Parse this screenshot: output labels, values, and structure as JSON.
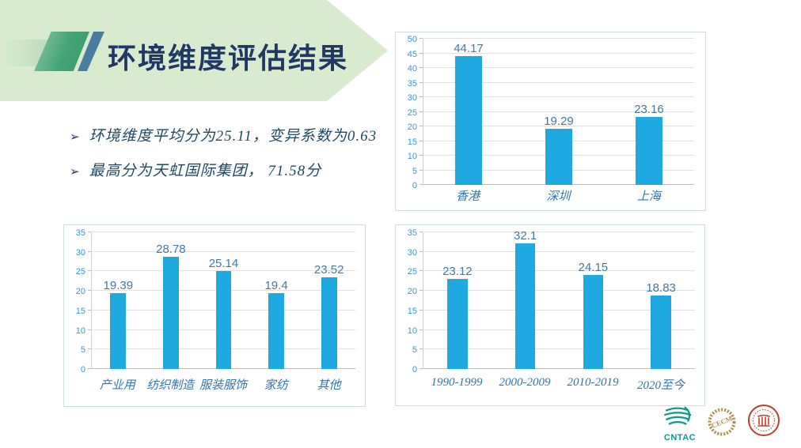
{
  "slide": {
    "title": "环境维度评估结果",
    "bullet_marker": "➢",
    "bullets": [
      "环境维度平均分为25.11，变异系数为0.63",
      "最高分为天虹国际集团， 71.58分"
    ]
  },
  "colors": {
    "banner_bg": "#D9EBCF",
    "slash_green": "#44A476",
    "slash_blue": "#4A7BA0",
    "title_text": "#1F3864",
    "bullet_text": "#1E4962",
    "bar_fill": "#1EA9E0",
    "tick_label": "#3398D8",
    "data_label": "#4678A0",
    "category_label": "#2F74B5",
    "gridline": "#E2E2E2",
    "panel_border": "#CBDCEA"
  },
  "chart_data": [
    {
      "id": "score-by-city",
      "type": "bar",
      "title": "",
      "categories": [
        "香港",
        "深圳",
        "上海"
      ],
      "values": [
        44.17,
        19.29,
        23.16
      ],
      "data_labels": [
        "44.17",
        "19.29",
        "23.16"
      ],
      "xlabel": "",
      "ylabel": "",
      "ylim": [
        0,
        50
      ],
      "ytick_step": 5,
      "grid": true,
      "legend": false
    },
    {
      "id": "score-by-industry",
      "type": "bar",
      "title": "",
      "categories": [
        "产业用",
        "纺织制造",
        "服装服饰",
        "家纺",
        "其他"
      ],
      "values": [
        19.39,
        28.78,
        25.14,
        19.4,
        23.52
      ],
      "data_labels": [
        "19.39",
        "28.78",
        "25.14",
        "19.4",
        "23.52"
      ],
      "xlabel": "",
      "ylabel": "",
      "ylim": [
        0,
        35
      ],
      "ytick_step": 5,
      "grid": true,
      "legend": false
    },
    {
      "id": "score-by-period",
      "type": "bar",
      "title": "",
      "categories": [
        "1990-1999",
        "2000-2009",
        "2010-2019",
        "2020至今"
      ],
      "values": [
        23.12,
        32.1,
        24.15,
        18.83
      ],
      "data_labels": [
        "23.12",
        "32.1",
        "24.15",
        "18.83"
      ],
      "xlabel": "",
      "ylabel": "",
      "ylim": [
        0,
        35
      ],
      "ytick_step": 5,
      "grid": true,
      "legend": false
    }
  ],
  "footer_logos": [
    {
      "name": "cntac-logo",
      "label": "CNTAC"
    },
    {
      "name": "cecm-logo",
      "label": "CECM"
    },
    {
      "name": "university-seal-logo",
      "label": ""
    }
  ]
}
